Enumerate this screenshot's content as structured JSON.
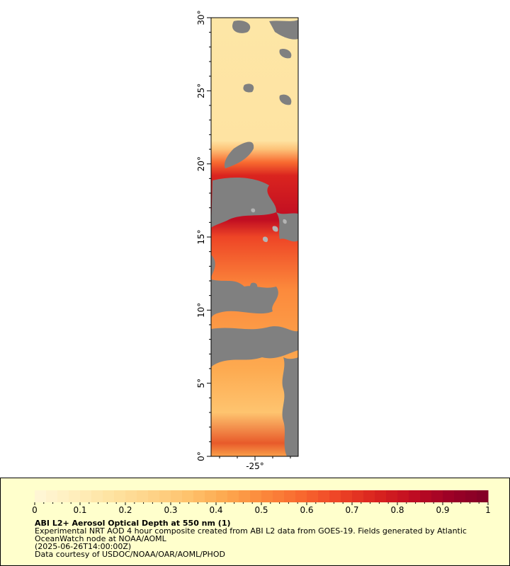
{
  "map": {
    "lat_ticks": [
      "30°",
      "25°",
      "20°",
      "15°",
      "10°",
      "5°",
      "0°"
    ],
    "lon_ticks": [
      "-25°"
    ],
    "colors": {
      "no_data": "#808080",
      "cloud": "#b4b4b4"
    }
  },
  "colorbar": {
    "min": 0,
    "max": 1,
    "labels": [
      "0",
      "0.1",
      "0.2",
      "0.3",
      "0.4",
      "0.5",
      "0.6",
      "0.7",
      "0.8",
      "0.9",
      "1"
    ],
    "colors": [
      "#fff7d8",
      "#ffefbd",
      "#fee3a2",
      "#fed58a",
      "#fec46f",
      "#fdaa50",
      "#fc8a3c",
      "#f86a30",
      "#ee4526",
      "#da241f",
      "#c00d22",
      "#9c0026",
      "#800026"
    ],
    "background": "#ffffcc"
  },
  "caption": {
    "title": "ABI L2+ Aerosol Optical Depth at 550 nm (1)",
    "line1": "Experimental NRT AOD 4 hour composite created from ABI L2 data from GOES-19. Fields generated by Atlantic OceanWatch node at NOAA/AOML",
    "line2": "(2025-06-26T14:00:00Z)",
    "line3": "Data courtesy of USDOC/NOAA/OAR/AOML/PHOD"
  }
}
